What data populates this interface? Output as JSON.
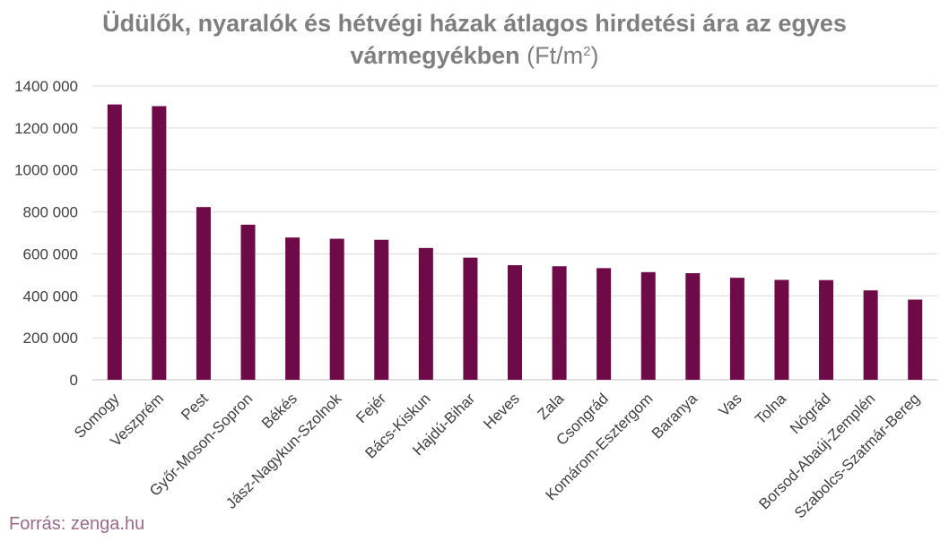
{
  "chart_data": {
    "type": "bar",
    "title_bold_line1": "Üdülők, nyaralók és hétvégi házak átlagos hirdetési ára az egyes",
    "title_bold_line2": "vármegyékben",
    "title_unit_prefix": "(Ft/m",
    "title_unit_sup": "2",
    "title_unit_suffix": ")",
    "categories": [
      "Somogy",
      "Veszprém",
      "Pest",
      "Győr-Moson-Sopron",
      "Békés",
      "Jász-Nagykun-Szolnok",
      "Fejér",
      "Bács-Kiskun",
      "Hajdú-Bihar",
      "Heves",
      "Zala",
      "Csongrád",
      "Komárom-Esztergom",
      "Baranya",
      "Vas",
      "Tolna",
      "Nógrád",
      "Borsod-Abaúj-Zemplén",
      "Szabolcs-Szatmár-Bereg"
    ],
    "values": [
      1312000,
      1304000,
      823000,
      739000,
      678000,
      672000,
      667000,
      628000,
      582000,
      546000,
      541000,
      532000,
      513000,
      508000,
      486000,
      476000,
      475000,
      426000,
      382000
    ],
    "yticks": [
      "0",
      "200 000",
      "400 000",
      "600 000",
      "800 000",
      "1000 000",
      "1200 000",
      "1400 000"
    ],
    "ylim": [
      0,
      1400000
    ],
    "grid": true,
    "bar_color": "#6e0a47",
    "grid_color": "#d9d9d9"
  },
  "source_text": "Forrás: zenga.hu"
}
